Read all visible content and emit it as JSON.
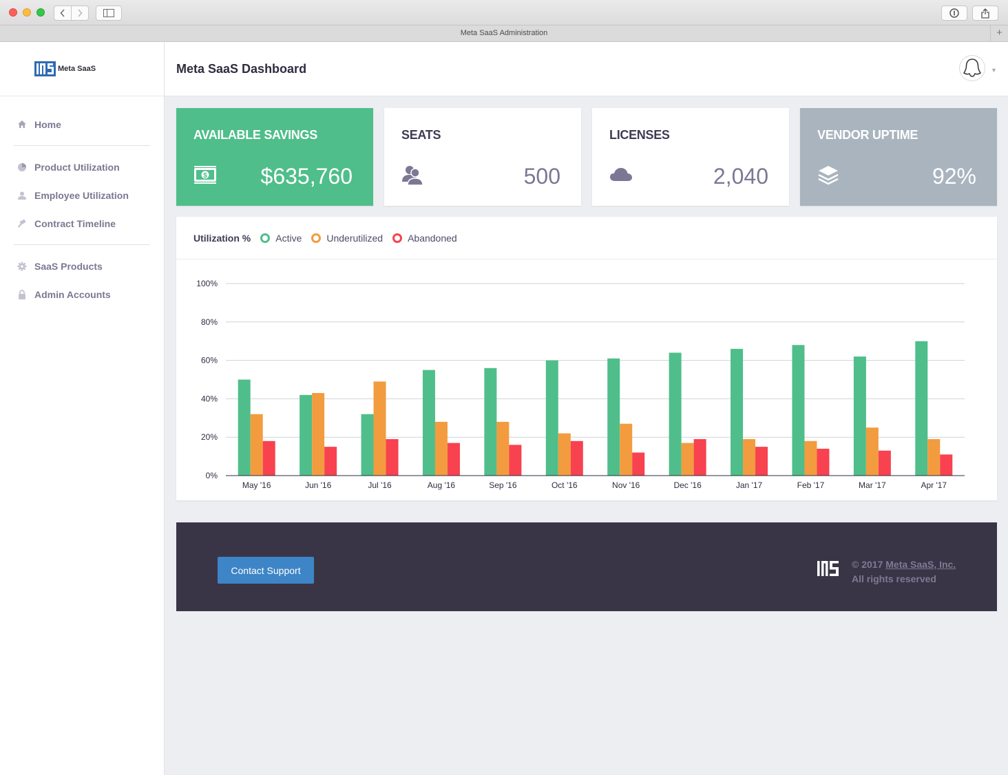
{
  "window": {
    "tab_title": "Meta SaaS Administration",
    "new_tab_symbol": "+"
  },
  "sidebar": {
    "brand_name": "Meta SaaS",
    "items": [
      {
        "label": "Home",
        "icon": "home-icon"
      },
      {
        "label": "Product Utilization",
        "icon": "pie-chart-icon"
      },
      {
        "label": "Employee Utilization",
        "icon": "user-icon"
      },
      {
        "label": "Contract Timeline",
        "icon": "gavel-icon"
      },
      {
        "label": "SaaS Products",
        "icon": "gear-icon"
      },
      {
        "label": "Admin Accounts",
        "icon": "lock-icon"
      }
    ]
  },
  "header": {
    "title": "Meta SaaS Dashboard"
  },
  "cards": [
    {
      "title": "AVAILABLE SAVINGS",
      "value": "$635,760",
      "icon": "money-icon",
      "color": "#4fbe8a"
    },
    {
      "title": "SEATS",
      "value": "500",
      "icon": "users-icon"
    },
    {
      "title": "LICENSES",
      "value": "2,040",
      "icon": "cloud-icon"
    },
    {
      "title": "VENDOR UPTIME",
      "value": "92%",
      "icon": "layers-icon",
      "color": "#a9b4be"
    }
  ],
  "chart_panel": {
    "legend_title": "Utilization %",
    "legend": [
      {
        "name": "Active",
        "color": "#4fbe8a"
      },
      {
        "name": "Underutilized",
        "color": "#f29c3f"
      },
      {
        "name": "Abandoned",
        "color": "#f8424f"
      }
    ]
  },
  "chart_data": {
    "type": "bar",
    "categories": [
      "May '16",
      "Jun '16",
      "Jul '16",
      "Aug '16",
      "Sep '16",
      "Oct '16",
      "Nov '16",
      "Dec '16",
      "Jan '17",
      "Feb '17",
      "Mar '17",
      "Apr '17"
    ],
    "series": [
      {
        "name": "Active",
        "color": "#4fbe8a",
        "values": [
          50,
          42,
          32,
          55,
          56,
          60,
          61,
          64,
          66,
          68,
          62,
          70
        ]
      },
      {
        "name": "Underutilized",
        "color": "#f29c3f",
        "values": [
          32,
          43,
          49,
          28,
          28,
          22,
          27,
          17,
          19,
          18,
          25,
          19
        ]
      },
      {
        "name": "Abandoned",
        "color": "#f8424f",
        "values": [
          18,
          15,
          19,
          17,
          16,
          18,
          12,
          19,
          15,
          14,
          13,
          11
        ]
      }
    ],
    "y_ticks": [
      "0%",
      "20%",
      "40%",
      "60%",
      "80%",
      "100%"
    ],
    "ylim": [
      0,
      100
    ],
    "grid": true
  },
  "footer": {
    "support_label": "Contact Support",
    "copyright_prefix": "© 2017",
    "company_link": "Meta SaaS, Inc.",
    "rights": "All rights reserved"
  }
}
